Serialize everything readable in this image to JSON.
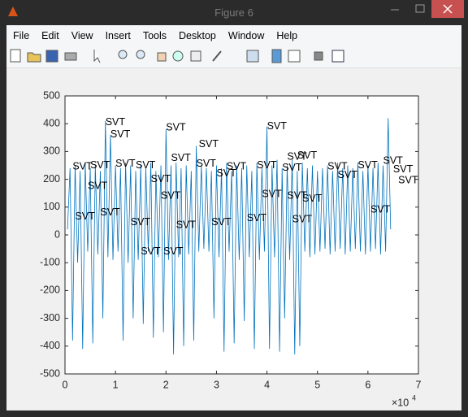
{
  "window": {
    "title": "Figure 6"
  },
  "menu": {
    "items": [
      "File",
      "Edit",
      "View",
      "Insert",
      "Tools",
      "Desktop",
      "Window",
      "Help"
    ]
  },
  "chart_data": {
    "type": "line",
    "x": [
      0.05,
      0.1,
      0.15,
      0.2,
      0.25,
      0.3,
      0.35,
      0.4,
      0.45,
      0.5,
      0.55,
      0.6,
      0.65,
      0.7,
      0.75,
      0.8,
      0.85,
      0.9,
      0.95,
      1.0,
      1.05,
      1.1,
      1.15,
      1.2,
      1.25,
      1.3,
      1.35,
      1.4,
      1.45,
      1.5,
      1.55,
      1.6,
      1.65,
      1.7,
      1.75,
      1.8,
      1.85,
      1.9,
      1.95,
      2.0,
      2.05,
      2.1,
      2.15,
      2.2,
      2.25,
      2.3,
      2.35,
      2.4,
      2.45,
      2.5,
      2.55,
      2.6,
      2.65,
      2.7,
      2.75,
      2.8,
      2.85,
      2.9,
      2.95,
      3.0,
      3.05,
      3.1,
      3.15,
      3.2,
      3.25,
      3.3,
      3.35,
      3.4,
      3.45,
      3.5,
      3.55,
      3.6,
      3.65,
      3.7,
      3.75,
      3.8,
      3.85,
      3.9,
      3.95,
      4.0,
      4.05,
      4.1,
      4.15,
      4.2,
      4.25,
      4.3,
      4.35,
      4.4,
      4.45,
      4.5,
      4.55,
      4.6,
      4.65,
      4.7,
      4.75,
      4.8,
      4.85,
      4.9,
      4.95,
      5.0,
      5.05,
      5.1,
      5.15,
      5.2,
      5.25,
      5.3,
      5.35,
      5.4,
      5.45,
      5.5,
      5.55,
      5.6,
      5.65,
      5.7,
      5.75,
      5.8,
      5.85,
      5.9,
      5.95,
      6.0,
      6.05,
      6.1,
      6.15,
      6.2,
      6.25,
      6.3,
      6.35,
      6.4,
      6.45
    ],
    "series": [
      {
        "color": "#0072bd",
        "values": [
          20,
          240,
          -380,
          250,
          -100,
          230,
          -410,
          260,
          -60,
          240,
          -390,
          250,
          -70,
          230,
          -300,
          410,
          -80,
          360,
          -90,
          250,
          -60,
          240,
          -380,
          260,
          -100,
          250,
          -300,
          230,
          -90,
          250,
          -320,
          240,
          -60,
          260,
          -370,
          230,
          -80,
          250,
          -350,
          380,
          -90,
          250,
          -430,
          260,
          -80,
          240,
          -400,
          250,
          -70,
          230,
          -380,
          320,
          -60,
          250,
          -50,
          240,
          -60,
          230,
          -300,
          250,
          -80,
          240,
          -420,
          260,
          -60,
          230,
          -390,
          250,
          -90,
          240,
          -310,
          250,
          -80,
          230,
          -410,
          260,
          -90,
          240,
          -60,
          390,
          -410,
          250,
          -80,
          270,
          -420,
          240,
          -300,
          250,
          -90,
          270,
          -430,
          230,
          -400,
          260,
          -60,
          240,
          -80,
          250,
          -70,
          230,
          -60,
          240,
          -50,
          250,
          -70,
          230,
          -60,
          260,
          -50,
          240,
          -70,
          250,
          -60,
          240,
          -50,
          260,
          -60,
          230,
          -70,
          250,
          -60,
          240,
          -50,
          260,
          -70,
          250,
          -60,
          420,
          20
        ]
      }
    ],
    "annotations": [
      {
        "text": "SVT",
        "x": 0.8,
        "y": 405
      },
      {
        "text": "SVT",
        "x": 0.9,
        "y": 360
      },
      {
        "text": "SVT",
        "x": 2.0,
        "y": 385
      },
      {
        "text": "SVT",
        "x": 2.65,
        "y": 325
      },
      {
        "text": "SVT",
        "x": 4.0,
        "y": 390
      },
      {
        "text": "SVT",
        "x": 4.4,
        "y": 280
      },
      {
        "text": "SVT",
        "x": 4.6,
        "y": 285
      },
      {
        "text": "SVT",
        "x": 0.15,
        "y": 245
      },
      {
        "text": "SVT",
        "x": 0.5,
        "y": 250
      },
      {
        "text": "SVT",
        "x": 1.0,
        "y": 255
      },
      {
        "text": "SVT",
        "x": 1.4,
        "y": 250
      },
      {
        "text": "SVT",
        "x": 2.1,
        "y": 275
      },
      {
        "text": "SVT",
        "x": 2.6,
        "y": 255
      },
      {
        "text": "SVT",
        "x": 3.2,
        "y": 245
      },
      {
        "text": "SVT",
        "x": 3.8,
        "y": 250
      },
      {
        "text": "SVT",
        "x": 4.3,
        "y": 240
      },
      {
        "text": "SVT",
        "x": 5.2,
        "y": 245
      },
      {
        "text": "SVT",
        "x": 5.8,
        "y": 250
      },
      {
        "text": "SVT",
        "x": 6.3,
        "y": 265
      },
      {
        "text": "SVT",
        "x": 6.5,
        "y": 235
      },
      {
        "text": "SVT",
        "x": 0.45,
        "y": 175
      },
      {
        "text": "SVT",
        "x": 1.7,
        "y": 200
      },
      {
        "text": "SVT",
        "x": 1.9,
        "y": 140
      },
      {
        "text": "SVT",
        "x": 3.9,
        "y": 145
      },
      {
        "text": "SVT",
        "x": 4.4,
        "y": 140
      },
      {
        "text": "SVT",
        "x": 4.7,
        "y": 130
      },
      {
        "text": "SVT",
        "x": 6.6,
        "y": 195
      },
      {
        "text": "SVT",
        "x": 6.05,
        "y": 90
      },
      {
        "text": "SVT",
        "x": 0.2,
        "y": 65
      },
      {
        "text": "SVT",
        "x": 0.7,
        "y": 80
      },
      {
        "text": "SVT",
        "x": 1.3,
        "y": 45
      },
      {
        "text": "SVT",
        "x": 2.2,
        "y": 35
      },
      {
        "text": "SVT",
        "x": 2.9,
        "y": 45
      },
      {
        "text": "SVT",
        "x": 3.6,
        "y": 60
      },
      {
        "text": "SVT",
        "x": 4.5,
        "y": 55
      },
      {
        "text": "SVT",
        "x": 1.5,
        "y": -60
      },
      {
        "text": "SVT",
        "x": 1.95,
        "y": -60
      },
      {
        "text": "SVT",
        "x": 5.4,
        "y": 215
      },
      {
        "text": "SVT",
        "x": 3.0,
        "y": 220
      }
    ],
    "xlim": [
      0,
      7
    ],
    "xticks": [
      0,
      1,
      2,
      3,
      4,
      5,
      6,
      7
    ],
    "ylim": [
      -500,
      500
    ],
    "yticks": [
      -500,
      -400,
      -300,
      -200,
      -100,
      0,
      100,
      200,
      300,
      400,
      500
    ],
    "x_multiplier": {
      "base": "×10",
      "exponent": "4"
    }
  }
}
